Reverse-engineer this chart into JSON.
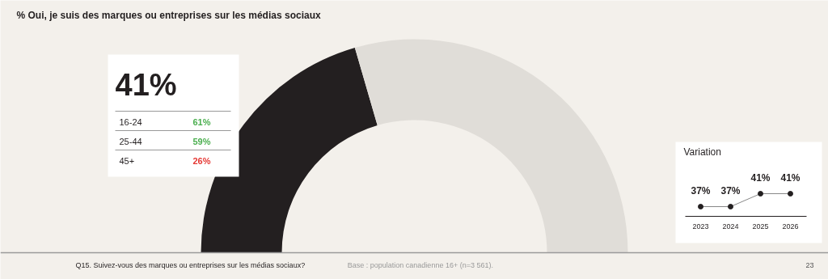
{
  "chart_data": [
    {
      "type": "donut",
      "title": "% Oui, je suis des marques ou entreprises sur les médias sociaux",
      "categories": [
        null,
        null
      ],
      "values": [
        41,
        59
      ],
      "colors": [
        "#231f20",
        "#e0ddd8"
      ],
      "annotations": [
        "Q15. Suivez-vous des marques ou entreprises sur les médias sociaux?",
        "Base : population canadienne 16+ (n=3 561).",
        "23"
      ]
    },
    {
      "type": "other",
      "title": "41%",
      "annotations": [
        "16-24",
        "61%",
        "25-44",
        "59%",
        "45+",
        "26%"
      ]
    },
    {
      "type": "line",
      "title": "Variation",
      "categories": [
        "2023",
        "2024",
        "2025",
        "2026"
      ],
      "values": [
        37,
        37,
        41,
        41
      ],
      "value_labels": [
        "37%",
        "37%",
        "41%",
        "41%"
      ],
      "color": "#231f20",
      "marker": "circle"
    }
  ]
}
